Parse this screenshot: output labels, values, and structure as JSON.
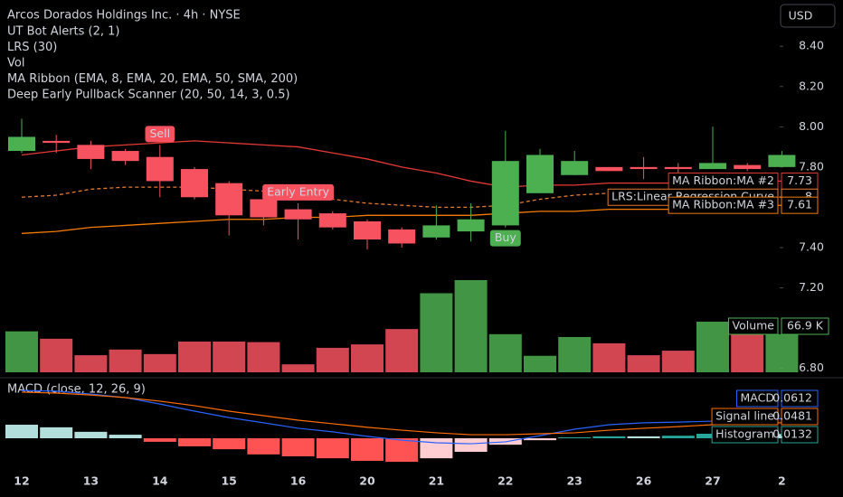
{
  "chart_data": [
    {
      "type": "candlestick",
      "title": "Arcos Dorados Holdings Inc. · 4h · NYSE",
      "currency": "USD",
      "indicators": [
        "UT Bot Alerts (2, 1)",
        "LRS (30)",
        "Vol",
        "MA Ribbon (EMA, 8, EMA, 20, EMA, 50, SMA, 200)",
        "Deep Early Pullback Scanner (20, 50, 14, 3, 0.5)"
      ],
      "categories": [
        "12",
        null,
        "13",
        null,
        "14",
        null,
        "15",
        null,
        "16",
        null,
        "20",
        null,
        "21",
        null,
        "22",
        null,
        "23",
        null,
        "26",
        null,
        "27",
        null,
        "2"
      ],
      "open": [
        7.88,
        7.93,
        7.91,
        7.88,
        7.85,
        7.79,
        7.72,
        7.64,
        7.59,
        7.57,
        7.53,
        7.49,
        7.45,
        7.48,
        7.51,
        7.67,
        7.76,
        7.8,
        7.8,
        7.8,
        7.79,
        7.81,
        7.8
      ],
      "high": [
        8.04,
        7.96,
        7.93,
        7.89,
        7.91,
        7.8,
        7.73,
        7.65,
        7.62,
        7.58,
        7.54,
        7.5,
        7.61,
        7.62,
        7.98,
        7.89,
        7.88,
        7.8,
        7.85,
        7.82,
        8.0,
        7.82,
        7.88
      ],
      "low": [
        7.87,
        7.87,
        7.79,
        7.81,
        7.65,
        7.64,
        7.46,
        7.51,
        7.44,
        7.49,
        7.39,
        7.4,
        7.44,
        7.43,
        7.5,
        7.67,
        7.76,
        7.78,
        7.74,
        7.76,
        7.79,
        7.78,
        7.8
      ],
      "close": [
        7.95,
        7.92,
        7.84,
        7.83,
        7.73,
        7.65,
        7.56,
        7.55,
        7.54,
        7.5,
        7.44,
        7.42,
        7.51,
        7.54,
        7.83,
        7.86,
        7.83,
        7.78,
        7.79,
        7.79,
        7.82,
        7.79,
        7.86
      ],
      "up_color": "#4caf50",
      "down_color": "#f7525f",
      "signals": [
        null,
        null,
        null,
        null,
        "Sell",
        null,
        null,
        null,
        "Early Entry",
        null,
        null,
        null,
        null,
        null,
        "Buy",
        null,
        null,
        null,
        null,
        null,
        null,
        null,
        null
      ],
      "series": [
        {
          "name": "MA Ribbon:MA #2",
          "color": "#e53935",
          "style": "solid",
          "values": [
            7.86,
            7.88,
            7.9,
            7.91,
            7.92,
            7.93,
            7.92,
            7.91,
            7.9,
            7.87,
            7.84,
            7.8,
            7.77,
            7.73,
            7.7,
            7.71,
            7.71,
            7.72,
            7.72,
            7.72,
            7.73,
            7.73,
            7.73
          ]
        },
        {
          "name": "LRS:Linear Regression Curve",
          "color": "#e57a2e",
          "style": "dashed",
          "tag": "8",
          "values": [
            7.65,
            7.66,
            7.69,
            7.7,
            7.7,
            7.7,
            7.69,
            7.68,
            7.66,
            7.64,
            7.62,
            7.61,
            7.6,
            7.6,
            7.61,
            7.64,
            7.66,
            7.67,
            7.67,
            7.67,
            7.66,
            7.66,
            7.65
          ]
        },
        {
          "name": "MA Ribbon:MA #3",
          "color": "#f57c00",
          "style": "solid",
          "values": [
            7.47,
            7.48,
            7.5,
            7.51,
            7.52,
            7.53,
            7.54,
            7.54,
            7.55,
            7.55,
            7.56,
            7.56,
            7.56,
            7.56,
            7.57,
            7.58,
            7.58,
            7.59,
            7.59,
            7.59,
            7.6,
            7.6,
            7.61
          ]
        }
      ],
      "ylim": [
        6.78,
        8.63
      ],
      "yticks": [
        {
          "value": 8.4,
          "label": "8.40"
        },
        {
          "value": 8.2,
          "label": "8.20"
        },
        {
          "value": 8.0,
          "label": "8.00"
        },
        {
          "value": 7.8,
          "label": "7.80"
        },
        {
          "value": 7.4,
          "label": "7.40"
        },
        {
          "value": 7.2,
          "label": "7.20"
        },
        {
          "value": 6.8,
          "label": "6.80"
        }
      ],
      "grid": false
    },
    {
      "type": "volume",
      "name": "Volume",
      "values": [
        72,
        59,
        30,
        40,
        32,
        54,
        54,
        53,
        14,
        43,
        49,
        76,
        139,
        162,
        67,
        29,
        62,
        51,
        30,
        38,
        89,
        67,
        66.9
      ],
      "value_labels": [
        null,
        null,
        null,
        null,
        null,
        null,
        null,
        null,
        null,
        null,
        null,
        null,
        null,
        null,
        null,
        null,
        null,
        null,
        null,
        null,
        null,
        null,
        "66.9 K"
      ]
    },
    {
      "type": "macd",
      "title": "MACD (close, 12, 26, 9)",
      "series": [
        {
          "name": "MACD",
          "color": "#2962ff",
          "values": [
            0.148,
            0.146,
            0.137,
            0.126,
            0.106,
            0.084,
            0.064,
            0.048,
            0.031,
            0.02,
            0.006,
            -0.006,
            -0.014,
            -0.017,
            -0.011,
            0.008,
            0.028,
            0.042,
            0.048,
            0.05,
            0.053,
            0.056,
            0.0612
          ]
        },
        {
          "name": "Signal line",
          "color": "#ff6d00",
          "values": [
            0.143,
            0.14,
            0.134,
            0.126,
            0.115,
            0.101,
            0.084,
            0.07,
            0.056,
            0.045,
            0.034,
            0.025,
            0.017,
            0.011,
            0.011,
            0.014,
            0.017,
            0.025,
            0.031,
            0.036,
            0.042,
            0.045,
            0.0481
          ]
        }
      ],
      "histogram": {
        "name": "Histogram",
        "color": "#26a69a",
        "values": [
          0.042,
          0.034,
          0.02,
          0.011,
          -0.011,
          -0.025,
          -0.034,
          -0.05,
          -0.056,
          -0.062,
          -0.07,
          -0.073,
          -0.062,
          -0.042,
          -0.02,
          -0.006,
          0.003,
          0.006,
          0.006,
          0.008,
          0.014,
          0.014,
          0.0132
        ],
        "colors": [
          "#b2dfdb",
          "#b2dfdb",
          "#b2dfdb",
          "#b2dfdb",
          "#ff5252",
          "#ff5252",
          "#ff5252",
          "#ff5252",
          "#ff5252",
          "#ff5252",
          "#ff5252",
          "#ff5252",
          "#ffcdd2",
          "#ffcdd2",
          "#ffcdd2",
          "#ffcdd2",
          "#26a69a",
          "#26a69a",
          "#b2dfdb",
          "#26a69a",
          "#26a69a",
          "#b2dfdb",
          "#b2dfdb"
        ]
      },
      "ylim": [
        -0.098,
        0.182
      ]
    }
  ]
}
